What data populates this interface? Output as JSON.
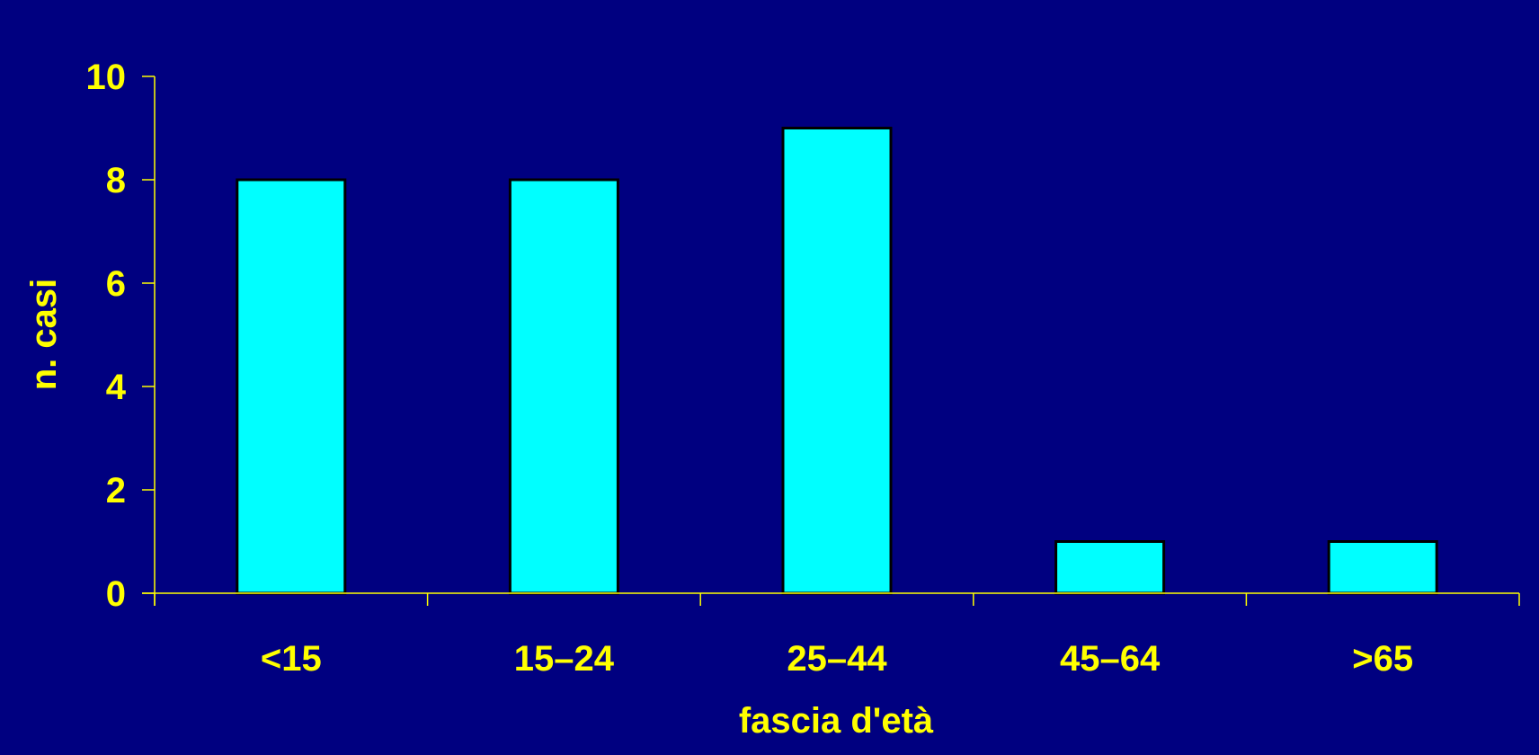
{
  "chart_data": {
    "type": "bar",
    "categories": [
      "<15",
      "15–24",
      "25–44",
      "45–64",
      ">65"
    ],
    "values": [
      8,
      8,
      9,
      1,
      1
    ],
    "title": "",
    "xlabel": "fascia d'età",
    "ylabel": "n. casi",
    "ylim": [
      0,
      10
    ],
    "yticks": [
      0,
      2,
      4,
      6,
      8,
      10
    ],
    "grid": false,
    "legend": "none"
  },
  "colors": {
    "background": "#000080",
    "plot_background": "#000080",
    "bar_fill": "#00FFFF",
    "bar_stroke": "#000000",
    "axis": "#FFFF00",
    "text": "#FFFF00"
  }
}
